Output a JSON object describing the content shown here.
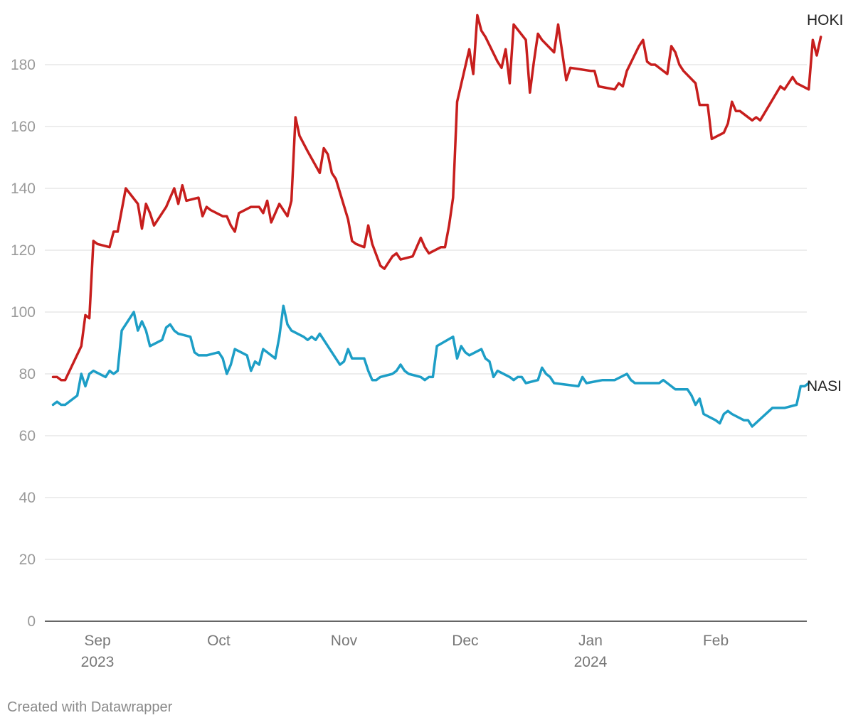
{
  "chart_data": {
    "type": "line",
    "title": "",
    "xlabel": "",
    "ylabel": "",
    "ylim": [
      0,
      195
    ],
    "yticks": [
      0,
      20,
      40,
      60,
      80,
      100,
      120,
      140,
      160,
      180
    ],
    "grid": true,
    "legend": "direct labels at line ends",
    "xticks": [
      {
        "date": "2023-09-01",
        "label": "Sep",
        "year": "2023"
      },
      {
        "date": "2023-10-01",
        "label": "Oct",
        "year": ""
      },
      {
        "date": "2023-11-01",
        "label": "Nov",
        "year": ""
      },
      {
        "date": "2023-12-01",
        "label": "Dec",
        "year": ""
      },
      {
        "date": "2024-01-01",
        "label": "Jan",
        "year": "2024"
      },
      {
        "date": "2024-02-01",
        "label": "Feb",
        "year": ""
      }
    ],
    "series": [
      {
        "name": "HOKI",
        "color": "#c71e1d",
        "points": [
          [
            "2023-08-21",
            79
          ],
          [
            "2023-08-22",
            79
          ],
          [
            "2023-08-23",
            78
          ],
          [
            "2023-08-24",
            78
          ],
          [
            "2023-08-28",
            89
          ],
          [
            "2023-08-29",
            99
          ],
          [
            "2023-08-30",
            98
          ],
          [
            "2023-08-31",
            123
          ],
          [
            "2023-09-01",
            122
          ],
          [
            "2023-09-04",
            121
          ],
          [
            "2023-09-05",
            126
          ],
          [
            "2023-09-06",
            126
          ],
          [
            "2023-09-08",
            140
          ],
          [
            "2023-09-11",
            135
          ],
          [
            "2023-09-12",
            127
          ],
          [
            "2023-09-13",
            135
          ],
          [
            "2023-09-14",
            132
          ],
          [
            "2023-09-15",
            128
          ],
          [
            "2023-09-18",
            134
          ],
          [
            "2023-09-19",
            137
          ],
          [
            "2023-09-20",
            140
          ],
          [
            "2023-09-21",
            135
          ],
          [
            "2023-09-22",
            141
          ],
          [
            "2023-09-23",
            136
          ],
          [
            "2023-09-26",
            137
          ],
          [
            "2023-09-27",
            131
          ],
          [
            "2023-09-28",
            134
          ],
          [
            "2023-09-29",
            133
          ],
          [
            "2023-10-02",
            131
          ],
          [
            "2023-10-03",
            131
          ],
          [
            "2023-10-04",
            128
          ],
          [
            "2023-10-05",
            126
          ],
          [
            "2023-10-06",
            132
          ],
          [
            "2023-10-09",
            134
          ],
          [
            "2023-10-10",
            134
          ],
          [
            "2023-10-11",
            134
          ],
          [
            "2023-10-12",
            132
          ],
          [
            "2023-10-13",
            136
          ],
          [
            "2023-10-14",
            129
          ],
          [
            "2023-10-16",
            135
          ],
          [
            "2023-10-18",
            131
          ],
          [
            "2023-10-19",
            136
          ],
          [
            "2023-10-20",
            163
          ],
          [
            "2023-10-21",
            157
          ],
          [
            "2023-10-23",
            152
          ],
          [
            "2023-10-26",
            145
          ],
          [
            "2023-10-27",
            153
          ],
          [
            "2023-10-28",
            151
          ],
          [
            "2023-10-29",
            145
          ],
          [
            "2023-10-30",
            143
          ],
          [
            "2023-11-02",
            130
          ],
          [
            "2023-11-03",
            123
          ],
          [
            "2023-11-04",
            122
          ],
          [
            "2023-11-06",
            121
          ],
          [
            "2023-11-07",
            128
          ],
          [
            "2023-11-08",
            122
          ],
          [
            "2023-11-10",
            115
          ],
          [
            "2023-11-11",
            114
          ],
          [
            "2023-11-13",
            118
          ],
          [
            "2023-11-14",
            119
          ],
          [
            "2023-11-15",
            117
          ],
          [
            "2023-11-18",
            118
          ],
          [
            "2023-11-20",
            124
          ],
          [
            "2023-11-21",
            121
          ],
          [
            "2023-11-22",
            119
          ],
          [
            "2023-11-25",
            121
          ],
          [
            "2023-11-26",
            121
          ],
          [
            "2023-11-27",
            128
          ],
          [
            "2023-11-28",
            137
          ],
          [
            "2023-11-29",
            168
          ],
          [
            "2023-12-02",
            185
          ],
          [
            "2023-12-03",
            177
          ],
          [
            "2023-12-04",
            196
          ],
          [
            "2023-12-05",
            191
          ],
          [
            "2023-12-06",
            189
          ],
          [
            "2023-12-09",
            181
          ],
          [
            "2023-12-10",
            179
          ],
          [
            "2023-12-11",
            185
          ],
          [
            "2023-12-12",
            174
          ],
          [
            "2023-12-13",
            193
          ],
          [
            "2023-12-16",
            188
          ],
          [
            "2023-12-17",
            171
          ],
          [
            "2023-12-18",
            181
          ],
          [
            "2023-12-19",
            190
          ],
          [
            "2023-12-20",
            188
          ],
          [
            "2023-12-23",
            184
          ],
          [
            "2023-12-24",
            193
          ],
          [
            "2023-12-26",
            175
          ],
          [
            "2023-12-27",
            179
          ],
          [
            "2024-01-01",
            178
          ],
          [
            "2024-01-02",
            178
          ],
          [
            "2024-01-03",
            173
          ],
          [
            "2024-01-07",
            172
          ],
          [
            "2024-01-08",
            174
          ],
          [
            "2024-01-09",
            173
          ],
          [
            "2024-01-10",
            178
          ],
          [
            "2024-01-13",
            186
          ],
          [
            "2024-01-14",
            188
          ],
          [
            "2024-01-15",
            181
          ],
          [
            "2024-01-16",
            180
          ],
          [
            "2024-01-17",
            180
          ],
          [
            "2024-01-20",
            177
          ],
          [
            "2024-01-21",
            186
          ],
          [
            "2024-01-22",
            184
          ],
          [
            "2024-01-23",
            180
          ],
          [
            "2024-01-24",
            178
          ],
          [
            "2024-01-27",
            174
          ],
          [
            "2024-01-28",
            167
          ],
          [
            "2024-01-30",
            167
          ],
          [
            "2024-01-31",
            156
          ],
          [
            "2024-02-03",
            158
          ],
          [
            "2024-02-04",
            161
          ],
          [
            "2024-02-05",
            168
          ],
          [
            "2024-02-06",
            165
          ],
          [
            "2024-02-07",
            165
          ],
          [
            "2024-02-10",
            162
          ],
          [
            "2024-02-11",
            163
          ],
          [
            "2024-02-12",
            162
          ],
          [
            "2024-02-17",
            173
          ],
          [
            "2024-02-18",
            172
          ],
          [
            "2024-02-20",
            176
          ],
          [
            "2024-02-21",
            174
          ],
          [
            "2024-02-24",
            172
          ],
          [
            "2024-02-25",
            188
          ],
          [
            "2024-02-26",
            183
          ],
          [
            "2024-02-27",
            189
          ]
        ]
      },
      {
        "name": "NASI",
        "color": "#1d9ec6",
        "points": [
          [
            "2023-08-21",
            70
          ],
          [
            "2023-08-22",
            71
          ],
          [
            "2023-08-23",
            70
          ],
          [
            "2023-08-24",
            70
          ],
          [
            "2023-08-27",
            73
          ],
          [
            "2023-08-28",
            80
          ],
          [
            "2023-08-29",
            76
          ],
          [
            "2023-08-30",
            80
          ],
          [
            "2023-08-31",
            81
          ],
          [
            "2023-09-03",
            79
          ],
          [
            "2023-09-04",
            81
          ],
          [
            "2023-09-05",
            80
          ],
          [
            "2023-09-06",
            81
          ],
          [
            "2023-09-07",
            94
          ],
          [
            "2023-09-10",
            100
          ],
          [
            "2023-09-11",
            94
          ],
          [
            "2023-09-12",
            97
          ],
          [
            "2023-09-13",
            94
          ],
          [
            "2023-09-14",
            89
          ],
          [
            "2023-09-17",
            91
          ],
          [
            "2023-09-18",
            95
          ],
          [
            "2023-09-19",
            96
          ],
          [
            "2023-09-20",
            94
          ],
          [
            "2023-09-21",
            93
          ],
          [
            "2023-09-24",
            92
          ],
          [
            "2023-09-25",
            87
          ],
          [
            "2023-09-26",
            86
          ],
          [
            "2023-09-28",
            86
          ],
          [
            "2023-10-01",
            87
          ],
          [
            "2023-10-02",
            85
          ],
          [
            "2023-10-03",
            80
          ],
          [
            "2023-10-04",
            83
          ],
          [
            "2023-10-05",
            88
          ],
          [
            "2023-10-08",
            86
          ],
          [
            "2023-10-09",
            81
          ],
          [
            "2023-10-10",
            84
          ],
          [
            "2023-10-11",
            83
          ],
          [
            "2023-10-12",
            88
          ],
          [
            "2023-10-15",
            85
          ],
          [
            "2023-10-16",
            92
          ],
          [
            "2023-10-17",
            102
          ],
          [
            "2023-10-18",
            96
          ],
          [
            "2023-10-19",
            94
          ],
          [
            "2023-10-22",
            92
          ],
          [
            "2023-10-23",
            91
          ],
          [
            "2023-10-24",
            92
          ],
          [
            "2023-10-25",
            91
          ],
          [
            "2023-10-26",
            93
          ],
          [
            "2023-10-30",
            85
          ],
          [
            "2023-10-31",
            83
          ],
          [
            "2023-11-01",
            84
          ],
          [
            "2023-11-02",
            88
          ],
          [
            "2023-11-03",
            85
          ],
          [
            "2023-11-06",
            85
          ],
          [
            "2023-11-07",
            81
          ],
          [
            "2023-11-08",
            78
          ],
          [
            "2023-11-09",
            78
          ],
          [
            "2023-11-10",
            79
          ],
          [
            "2023-11-13",
            80
          ],
          [
            "2023-11-14",
            81
          ],
          [
            "2023-11-15",
            83
          ],
          [
            "2023-11-16",
            81
          ],
          [
            "2023-11-17",
            80
          ],
          [
            "2023-11-20",
            79
          ],
          [
            "2023-11-21",
            78
          ],
          [
            "2023-11-22",
            79
          ],
          [
            "2023-11-23",
            79
          ],
          [
            "2023-11-24",
            89
          ],
          [
            "2023-11-28",
            92
          ],
          [
            "2023-11-29",
            85
          ],
          [
            "2023-11-30",
            89
          ],
          [
            "2023-12-01",
            87
          ],
          [
            "2023-12-02",
            86
          ],
          [
            "2023-12-05",
            88
          ],
          [
            "2023-12-06",
            85
          ],
          [
            "2023-12-07",
            84
          ],
          [
            "2023-12-08",
            79
          ],
          [
            "2023-12-09",
            81
          ],
          [
            "2023-12-12",
            79
          ],
          [
            "2023-12-13",
            78
          ],
          [
            "2023-12-14",
            79
          ],
          [
            "2023-12-15",
            79
          ],
          [
            "2023-12-16",
            77
          ],
          [
            "2023-12-19",
            78
          ],
          [
            "2023-12-20",
            82
          ],
          [
            "2023-12-21",
            80
          ],
          [
            "2023-12-22",
            79
          ],
          [
            "2023-12-23",
            77
          ],
          [
            "2023-12-29",
            76
          ],
          [
            "2023-12-30",
            79
          ],
          [
            "2023-12-31",
            77
          ],
          [
            "2024-01-04",
            78
          ],
          [
            "2024-01-07",
            78
          ],
          [
            "2024-01-10",
            80
          ],
          [
            "2024-01-11",
            78
          ],
          [
            "2024-01-12",
            77
          ],
          [
            "2024-01-17",
            77
          ],
          [
            "2024-01-18",
            77
          ],
          [
            "2024-01-19",
            78
          ],
          [
            "2024-01-20",
            77
          ],
          [
            "2024-01-22",
            75
          ],
          [
            "2024-01-25",
            75
          ],
          [
            "2024-01-26",
            73
          ],
          [
            "2024-01-27",
            70
          ],
          [
            "2024-01-28",
            72
          ],
          [
            "2024-01-29",
            67
          ],
          [
            "2024-02-01",
            65
          ],
          [
            "2024-02-02",
            64
          ],
          [
            "2024-02-03",
            67
          ],
          [
            "2024-02-04",
            68
          ],
          [
            "2024-02-05",
            67
          ],
          [
            "2024-02-08",
            65
          ],
          [
            "2024-02-09",
            65
          ],
          [
            "2024-02-10",
            63
          ],
          [
            "2024-02-15",
            69
          ],
          [
            "2024-02-18",
            69
          ],
          [
            "2024-02-21",
            70
          ],
          [
            "2024-02-22",
            76
          ],
          [
            "2024-02-23",
            76
          ],
          [
            "2024-02-24",
            77
          ]
        ]
      }
    ]
  },
  "footer": {
    "credit": "Created with Datawrapper"
  }
}
